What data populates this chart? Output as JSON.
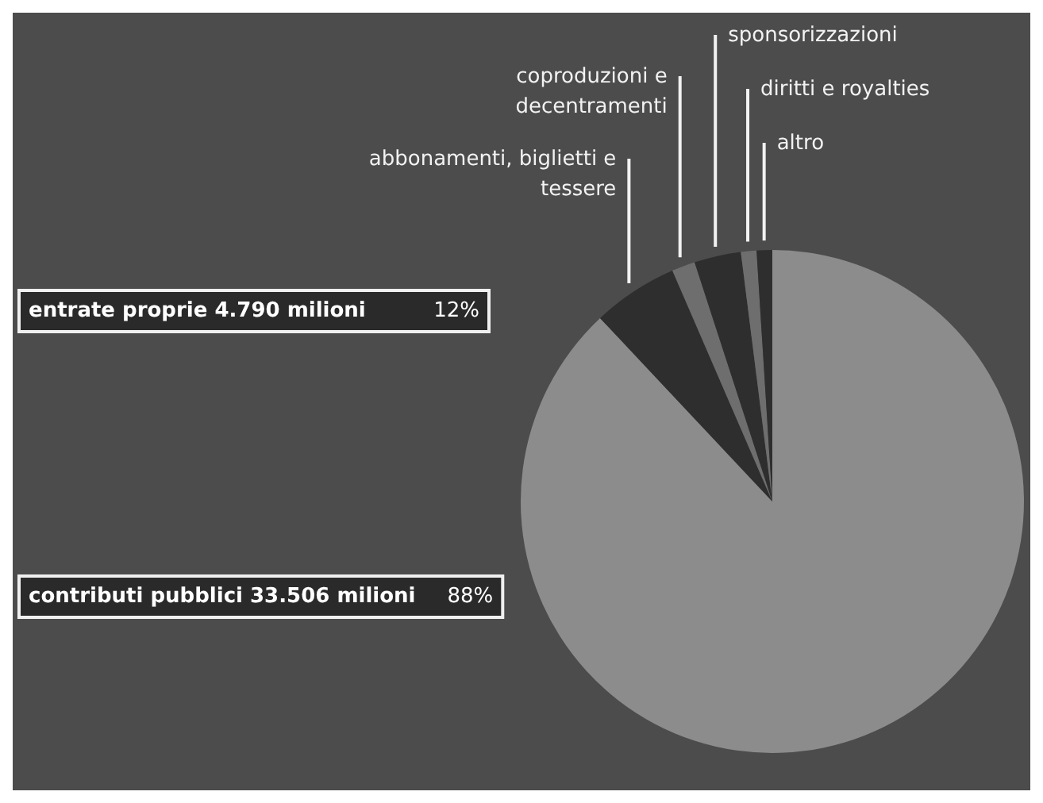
{
  "chart_data": {
    "type": "pie",
    "categories": [
      "contributi pubblici 33.506 milioni",
      "abbonamenti, biglietti e tessere",
      "coproduzioni e decentramenti",
      "sponsorizzazioni",
      "diritti e royalties",
      "altro"
    ],
    "values": [
      88,
      5.5,
      1.5,
      3,
      1,
      1
    ],
    "colors": [
      "#8c8c8c",
      "#2e2e2e",
      "#6e6e6e",
      "#2e2e2e",
      "#6e6e6e",
      "#2e2e2e"
    ],
    "value_labels": [
      "88%",
      null,
      null,
      null,
      null,
      null
    ],
    "annotations": [
      "entrate proprie 4.790 milioni",
      "12%"
    ],
    "legend": false
  }
}
